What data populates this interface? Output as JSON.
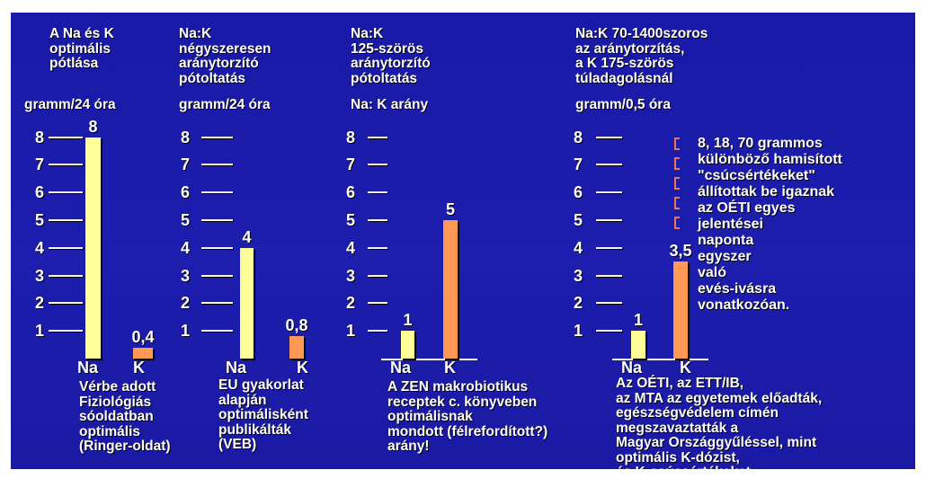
{
  "colors": {
    "background": "#1c1cab",
    "bar_na": "#ffff99",
    "bar_k": "#ff9955",
    "text": "#ffffff"
  },
  "panels": [
    {
      "title": "A Na és K\noptimális\npótlása",
      "unit": "gramm/24 óra",
      "footnote": "Vérbe adott\nFiziológiás\nsóoldatban\noptimális\n(Ringer-oldat)"
    },
    {
      "title": "Na:K\nnégyszeresen\naránytorzító\npótoltatás",
      "unit": "gramm/24 óra",
      "footnote": "EU gyakorlat\nalapján\noptimálisként\npublikálták\n(VEB)"
    },
    {
      "title": "Na:K\n125-szörös\naránytorzító\npótoltatás",
      "unit": "Na: K arány",
      "footnote": "A ZEN makrobiotikus\nreceptek c. könyveben\noptimálisnak\nmondott (félrefordított?)\narány!"
    },
    {
      "title": "Na:K 70-1400szoros\naz aránytorzítás,\na K 175-szörös\ntúladagolásnál",
      "unit": "gramm/0,5 óra",
      "footnote": "Az OÉTI, az ETT/IB,\naz MTA az egyetemek előadták,\negészségvédelem címén\nmegszavaztatták a\nMagyar Országgyűléssel, mint\noptimális K-dózist,\nés K-csúcsértékeket",
      "annotation": "8, 18, 70 grammos\nkülönböző hamisított\n\"csúcsértékeket\"\nállítottak be igaznak\naz OÉTI egyes\njelentései\nnaponta\negyszer\nvaló\nevés-ivásra\nvonatkozóan."
    }
  ],
  "chart_data": [
    {
      "type": "bar",
      "title": "A Na és K optimális pótlása",
      "ylabel": "gramm/24 óra",
      "categories": [
        "Na",
        "K"
      ],
      "values": [
        8,
        0.4
      ],
      "value_labels": [
        "8",
        "0,4"
      ],
      "yticks": [
        "1",
        "2",
        "3",
        "4",
        "5",
        "6",
        "7",
        "8"
      ],
      "ylim": [
        0,
        8.5
      ]
    },
    {
      "type": "bar",
      "title": "Na:K négyszeresen aránytorzító pótoltatás",
      "ylabel": "gramm/24 óra",
      "categories": [
        "Na",
        "K"
      ],
      "values": [
        4,
        0.8
      ],
      "value_labels": [
        "4",
        "0,8"
      ],
      "yticks": [
        "1",
        "2",
        "3",
        "4",
        "5",
        "6",
        "7",
        "8"
      ],
      "ylim": [
        0,
        8.5
      ]
    },
    {
      "type": "bar",
      "title": "Na:K 125-szörös aránytorzító pótoltatás",
      "ylabel": "Na: K arány",
      "categories": [
        "Na",
        "K"
      ],
      "values": [
        1,
        5
      ],
      "value_labels": [
        "1",
        "5"
      ],
      "yticks": [
        "1",
        "2",
        "3",
        "4",
        "5",
        "6",
        "7",
        "8"
      ],
      "ylim": [
        0,
        8.5
      ]
    },
    {
      "type": "bar",
      "title": "Na:K 70-1400szoros az aránytorzítás, a K 175-szörös túladagolásnál",
      "ylabel": "gramm/0,5 óra",
      "categories": [
        "Na",
        "K"
      ],
      "values": [
        1,
        3.5
      ],
      "value_labels": [
        "1",
        "3,5"
      ],
      "yticks": [
        "1",
        "2",
        "3",
        "4",
        "5",
        "6",
        "7",
        "8"
      ],
      "ylim": [
        0,
        8.5
      ]
    }
  ]
}
